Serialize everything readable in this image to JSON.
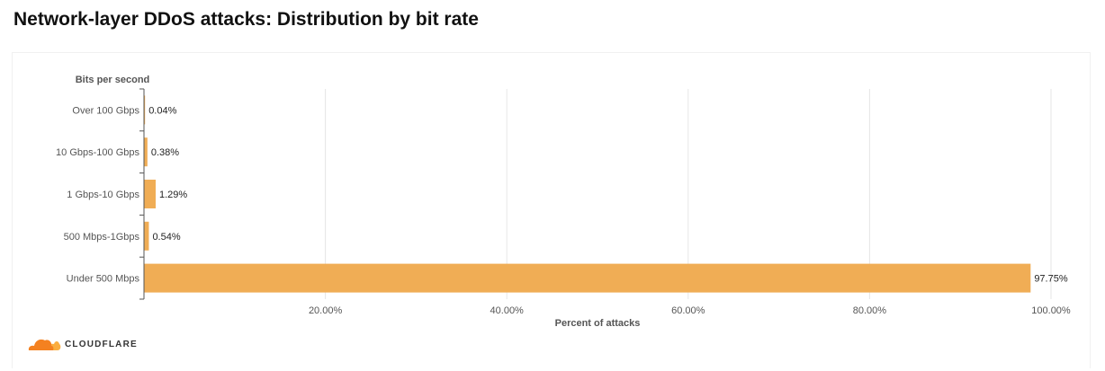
{
  "title": "Network-layer DDoS attacks: Distribution by bit rate",
  "brand": {
    "name": "CLOUDFLARE",
    "logo_icon": "cloudflare-cloud-icon",
    "logo_colors": [
      "#f48120",
      "#faad3f"
    ]
  },
  "colors": {
    "bar": "#f0ad55",
    "grid": "#e6e6e6",
    "axis": "#555555",
    "text": "#555555",
    "label": "#222222"
  },
  "chart_data": {
    "type": "bar",
    "orientation": "horizontal",
    "title": "Network-layer DDoS attacks: Distribution by bit rate",
    "ylabel": "Bits per second",
    "xlabel": "Percent of attacks",
    "categories": [
      "Over 100 Gbps",
      "10 Gbps-100 Gbps",
      "1 Gbps-10 Gbps",
      "500 Mbps-1Gbps",
      "Under 500 Mbps"
    ],
    "values": [
      0.04,
      0.38,
      1.29,
      0.54,
      97.75
    ],
    "data_labels": [
      "0.04%",
      "0.38%",
      "1.29%",
      "0.54%",
      "97.75%"
    ],
    "xlim": [
      0,
      100
    ],
    "xticks": [
      20,
      40,
      60,
      80,
      100
    ],
    "xtick_labels": [
      "20.00%",
      "40.00%",
      "60.00%",
      "80.00%",
      "100.00%"
    ],
    "grid": true,
    "legend": "none"
  }
}
